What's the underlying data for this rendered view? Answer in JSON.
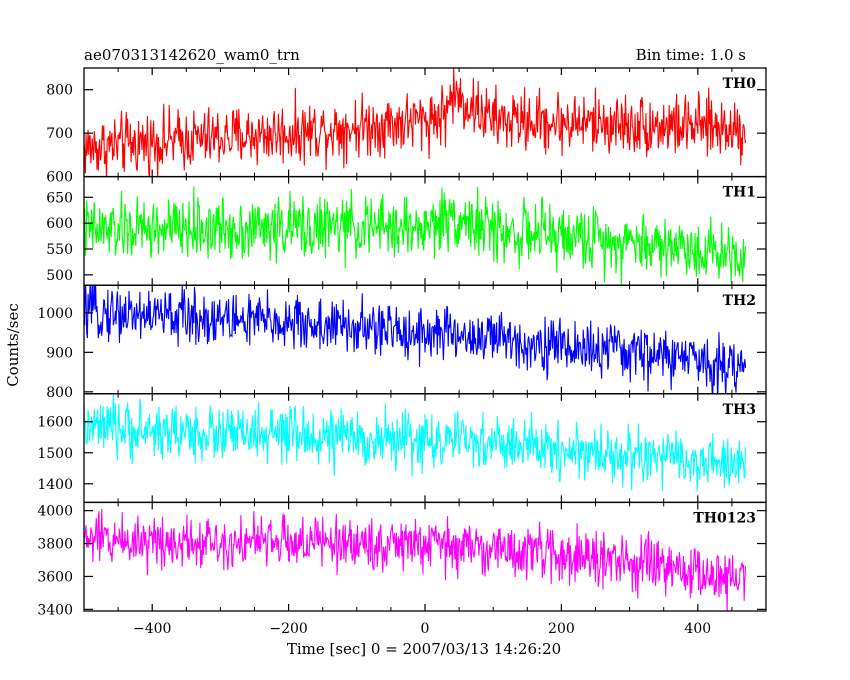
{
  "header": {
    "title": "ae070313142620_wam0_trn",
    "bin_time": "Bin time: 1.0 s"
  },
  "chart_data": {
    "type": "line",
    "title": "ae070313142620_wam0_trn",
    "subtitle": "Bin time: 1.0 s",
    "xlabel": "Time [sec] 0 = 2007/03/13 14:26:20",
    "ylabel": "Counts/sec",
    "xlim": [
      -500,
      500
    ],
    "x_ticks": [
      -400,
      -200,
      0,
      200,
      400
    ],
    "x_tick_labels": [
      "−400",
      "−200",
      "0",
      "200",
      "400"
    ],
    "x_range_data": [
      -500,
      470
    ],
    "grid": false,
    "series": [
      {
        "name": "TH0",
        "color": "#ff0000",
        "ylim": [
          600,
          850
        ],
        "y_ticks": [
          600,
          700,
          800
        ],
        "x": [
          -500,
          -400,
          -300,
          -200,
          -100,
          0,
          30,
          40,
          100,
          200,
          300,
          400,
          470
        ],
        "values": [
          665,
          680,
          690,
          700,
          715,
          730,
          745,
          790,
          730,
          725,
          720,
          715,
          712
        ],
        "noise": 35
      },
      {
        "name": "TH1",
        "color": "#00ff00",
        "ylim": [
          480,
          690
        ],
        "y_ticks": [
          500,
          550,
          600,
          650
        ],
        "x": [
          -500,
          -300,
          -100,
          0,
          40,
          100,
          200,
          300,
          400,
          470
        ],
        "values": [
          585,
          590,
          592,
          590,
          615,
          585,
          575,
          565,
          550,
          540
        ],
        "noise": 30
      },
      {
        "name": "TH2",
        "color": "#0000ff",
        "ylim": [
          795,
          1070
        ],
        "y_ticks": [
          800,
          900,
          1000
        ],
        "x": [
          -500,
          -400,
          -300,
          -200,
          -100,
          0,
          100,
          200,
          300,
          400,
          470
        ],
        "values": [
          1005,
          995,
          985,
          975,
          960,
          950,
          935,
          915,
          900,
          880,
          860
        ],
        "noise": 35
      },
      {
        "name": "TH3",
        "color": "#00ffff",
        "ylim": [
          1340,
          1690
        ],
        "y_ticks": [
          1400,
          1500,
          1600
        ],
        "x": [
          -500,
          -400,
          -300,
          -200,
          -100,
          0,
          100,
          200,
          300,
          400,
          470
        ],
        "values": [
          1580,
          1570,
          1560,
          1555,
          1545,
          1540,
          1530,
          1510,
          1490,
          1470,
          1450
        ],
        "noise": 45
      },
      {
        "name": "TH0123",
        "color": "#ff00ff",
        "ylim": [
          3390,
          4050
        ],
        "y_ticks": [
          3400,
          3600,
          3800,
          4000
        ],
        "x": [
          -500,
          -400,
          -300,
          -200,
          -100,
          0,
          100,
          200,
          300,
          400,
          470
        ],
        "values": [
          3830,
          3820,
          3815,
          3810,
          3800,
          3790,
          3770,
          3730,
          3680,
          3620,
          3580
        ],
        "noise": 80
      }
    ]
  }
}
